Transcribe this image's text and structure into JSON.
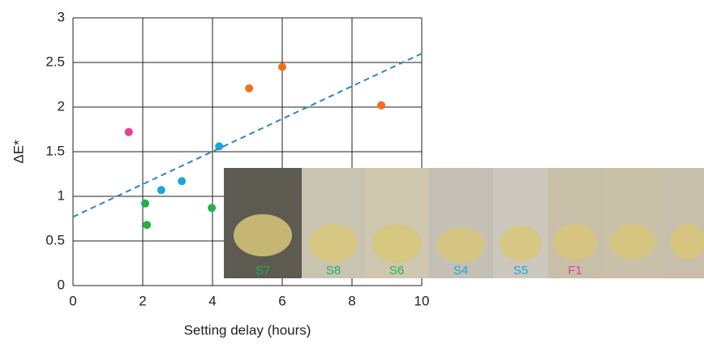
{
  "chart_data": {
    "type": "scatter",
    "xlabel": "Setting delay (hours)",
    "ylabel": "ΔE*",
    "xlim": [
      0,
      10
    ],
    "xticks": [
      0,
      2,
      4,
      6,
      8,
      10
    ],
    "ylim": [
      0,
      3
    ],
    "yticks": [
      0,
      0.5,
      1,
      1.5,
      2,
      2.5,
      3
    ],
    "grid": true,
    "series": [
      {
        "color": "#e83e9c",
        "x": [
          1.6
        ],
        "values": [
          1.72
        ]
      },
      {
        "color": "#1aa7e0",
        "x": [
          2.53,
          3.12,
          4.19
        ],
        "values": [
          1.07,
          1.17,
          1.56
        ]
      },
      {
        "color": "#22b14c",
        "x": [
          2.07,
          2.12,
          3.98
        ],
        "values": [
          0.92,
          0.68,
          0.87
        ]
      },
      {
        "color": "#f07020",
        "x": [
          5.05,
          6.0,
          8.84
        ],
        "values": [
          2.21,
          2.45,
          2.02
        ]
      }
    ],
    "trendline": {
      "color": "#2e86c1",
      "x": [
        0,
        10
      ],
      "values": [
        0.77,
        2.6
      ]
    },
    "photo_labels": [
      {
        "text": "S7",
        "color": "#22b14c"
      },
      {
        "text": "S8",
        "color": "#22b14c"
      },
      {
        "text": "S6",
        "color": "#22b14c"
      },
      {
        "text": "S4",
        "color": "#1aa7e0"
      },
      {
        "text": "S5",
        "color": "#1aa7e0"
      },
      {
        "text": "F1",
        "color": "#e83e9c"
      }
    ]
  }
}
